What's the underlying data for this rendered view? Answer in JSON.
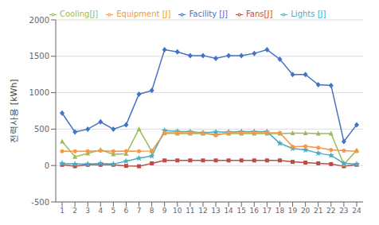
{
  "chart_data": {
    "type": "line",
    "ylabel": "전력사용 [kWh]",
    "x": [
      1,
      2,
      3,
      4,
      5,
      6,
      7,
      8,
      9,
      10,
      11,
      12,
      13,
      14,
      15,
      16,
      17,
      18,
      19,
      20,
      21,
      22,
      23,
      24
    ],
    "series": [
      {
        "name": "Facility [J]",
        "color": "#4472C4",
        "marker": "diamond",
        "values": [
          720,
          460,
          500,
          600,
          500,
          560,
          980,
          1030,
          1590,
          1560,
          1510,
          1510,
          1470,
          1510,
          1510,
          1540,
          1590,
          1460,
          1250,
          1250,
          1110,
          1100,
          330,
          560
        ]
      },
      {
        "name": "Fans[J]",
        "color": "#BE4B48",
        "marker": "square",
        "values": [
          10,
          -10,
          10,
          10,
          10,
          -5,
          -10,
          30,
          70,
          70,
          70,
          70,
          70,
          70,
          70,
          70,
          70,
          70,
          50,
          40,
          30,
          20,
          -10,
          10
        ]
      },
      {
        "name": "Cooling[J]",
        "color": "#9BBB59",
        "marker": "triangle",
        "values": [
          330,
          120,
          165,
          215,
          155,
          160,
          500,
          195,
          445,
          440,
          440,
          440,
          430,
          440,
          440,
          440,
          440,
          440,
          445,
          445,
          440,
          440,
          15,
          210
        ]
      },
      {
        "name": "Lights [J]",
        "color": "#4BACC6",
        "marker": "star",
        "values": [
          30,
          20,
          20,
          30,
          20,
          60,
          100,
          130,
          480,
          470,
          465,
          450,
          460,
          460,
          465,
          465,
          465,
          305,
          235,
          215,
          170,
          140,
          30,
          20
        ]
      },
      {
        "name": "Equipment [J]",
        "color": "#F79646",
        "marker": "circle",
        "values": [
          195,
          195,
          195,
          205,
          195,
          200,
          195,
          200,
          450,
          450,
          450,
          450,
          415,
          450,
          450,
          450,
          450,
          450,
          260,
          265,
          245,
          215,
          205,
          195
        ]
      }
    ],
    "xlim": [
      0.5,
      24.5
    ],
    "xticks": [
      1,
      2,
      3,
      4,
      5,
      6,
      7,
      8,
      9,
      10,
      11,
      12,
      13,
      14,
      15,
      16,
      17,
      18,
      19,
      20,
      21,
      22,
      23,
      24
    ],
    "ylim": [
      -500,
      2000
    ],
    "yticks": [
      -500,
      0,
      500,
      1000,
      1500,
      2000
    ],
    "grid": "y",
    "legend": "upper left"
  }
}
